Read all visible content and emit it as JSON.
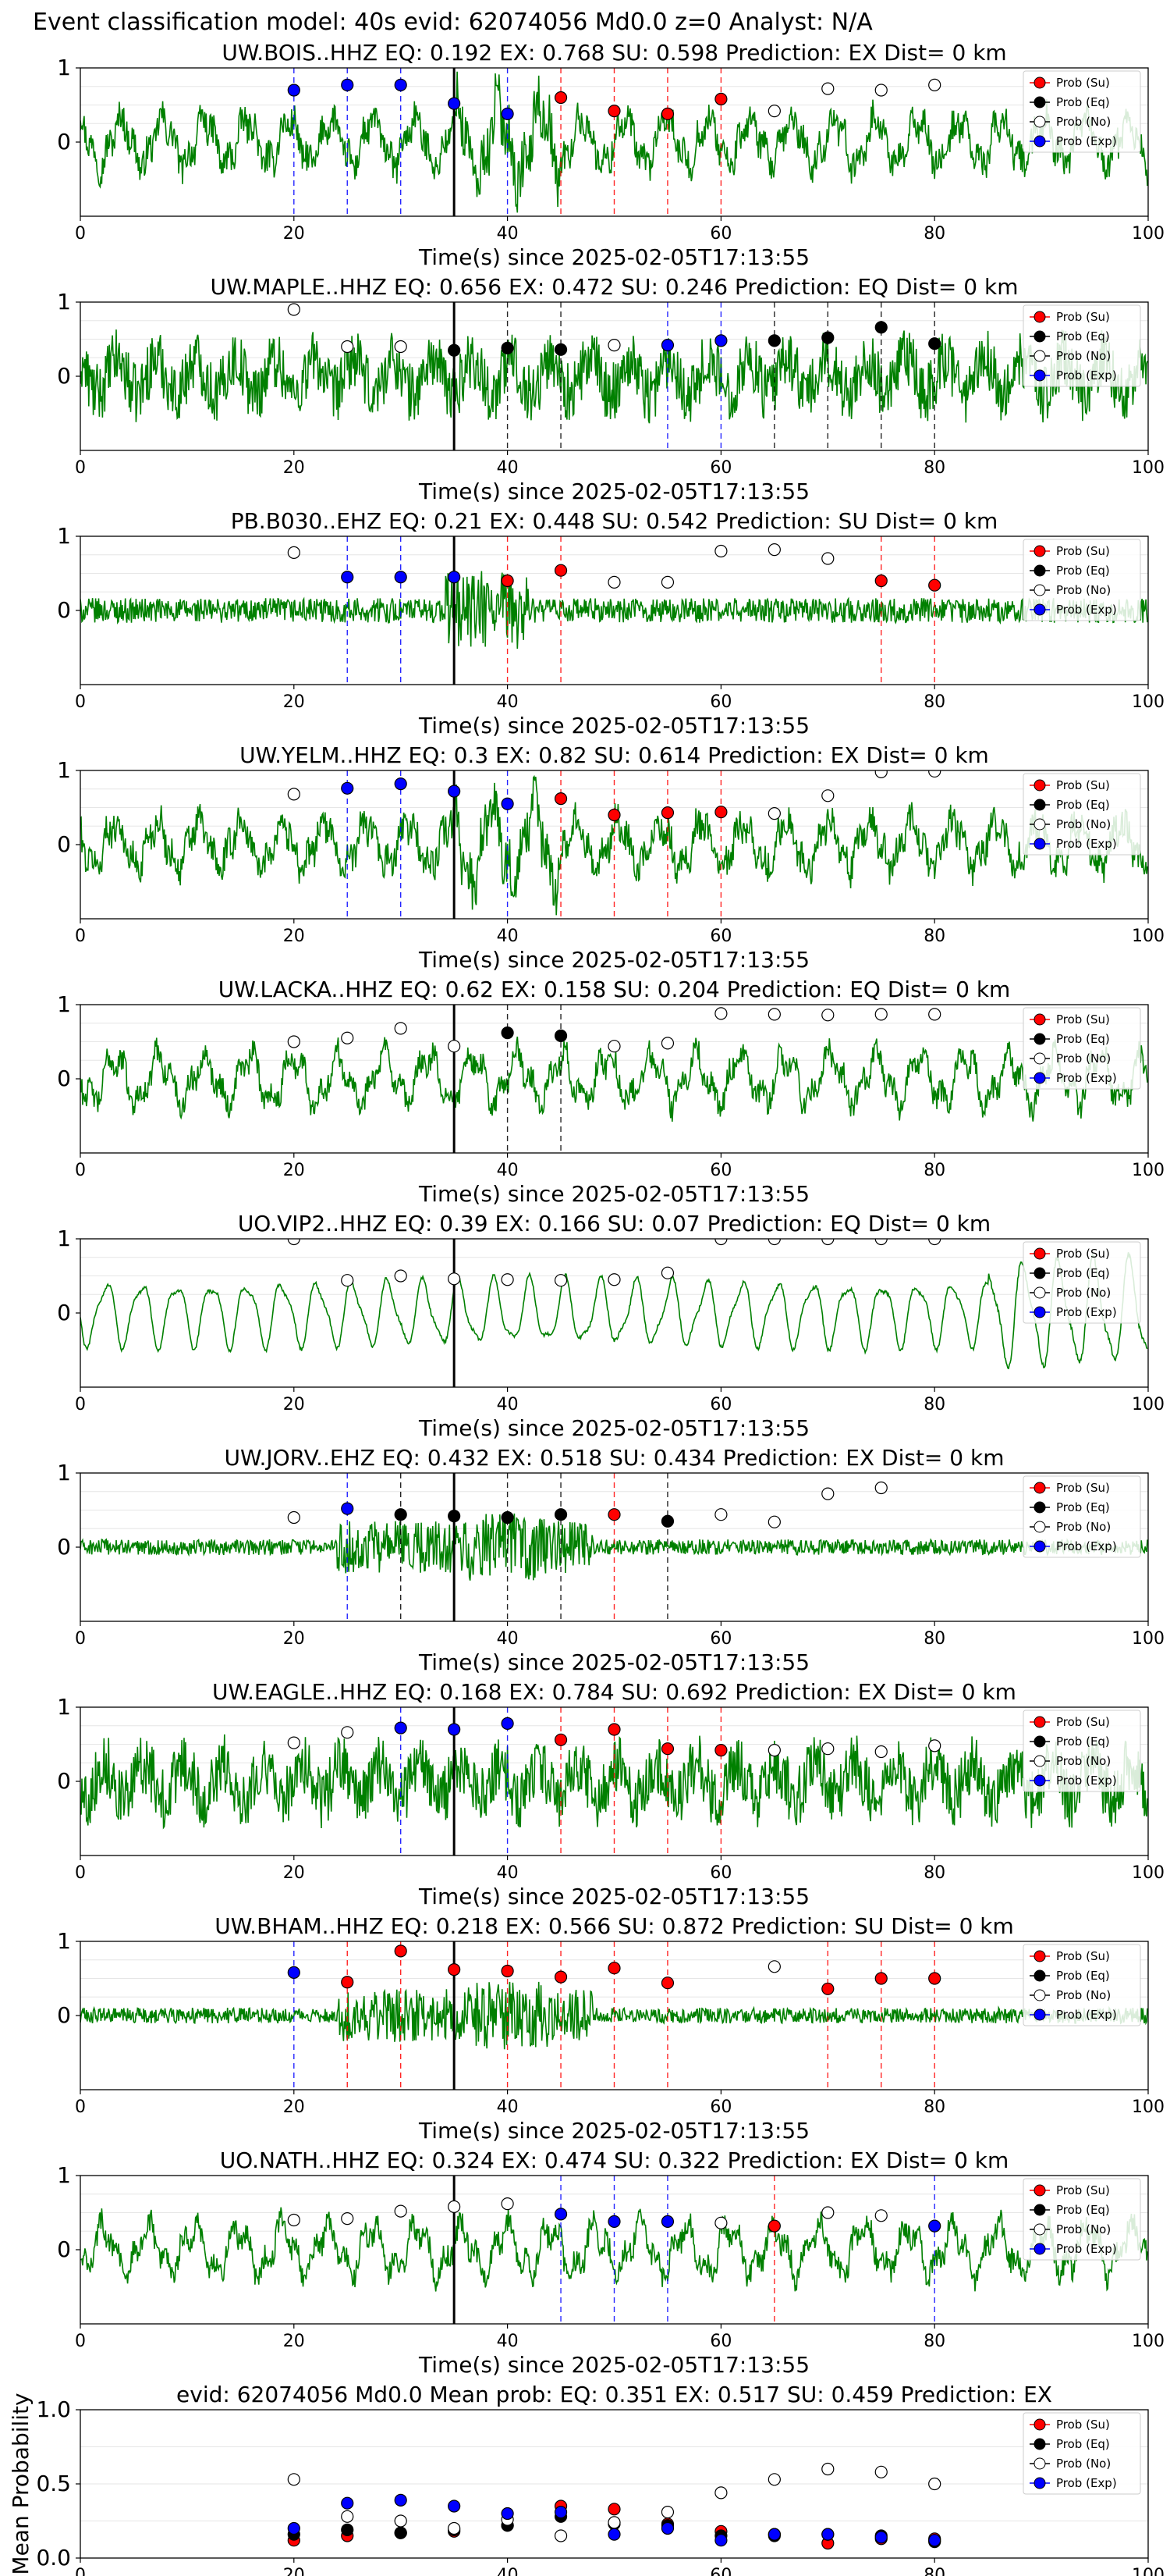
{
  "suptitle": "Event classification model: 40s evid: 62074056 Md0.0 z=0 Analyst: N/A",
  "colors": {
    "su": "#ff0000",
    "eq": "#000000",
    "ex": "#0000ff",
    "trace": "#008000"
  },
  "legend": [
    "Prob (Su)",
    "Prob (Eq)",
    "Prob (No)",
    "Prob (Exp)"
  ],
  "xlabel": "Time(s) since 2025-02-05T17:13:55",
  "xticks": [
    0,
    20,
    40,
    60,
    80,
    100
  ],
  "chart_data": [
    {
      "type": "scatter",
      "station": "UW.BOIS..HHZ",
      "title": "UW.BOIS..HHZ   EQ: 0.192  EX: 0.768  SU: 0.598   Prediction: EX    Dist= 0 km",
      "xlim": [
        0,
        100
      ],
      "ylim": [
        -1,
        1
      ],
      "yticks": [
        "1",
        "0"
      ],
      "waveform_style": "mid",
      "points": [
        {
          "t": 20,
          "c": "ex",
          "p": 0.7
        },
        {
          "t": 25,
          "c": "ex",
          "p": 0.77
        },
        {
          "t": 30,
          "c": "ex",
          "p": 0.77
        },
        {
          "t": 35,
          "c": "ex",
          "p": 0.52
        },
        {
          "t": 40,
          "c": "ex",
          "p": 0.38
        },
        {
          "t": 45,
          "c": "su",
          "p": 0.6
        },
        {
          "t": 50,
          "c": "su",
          "p": 0.42
        },
        {
          "t": 55,
          "c": "su",
          "p": 0.38
        },
        {
          "t": 60,
          "c": "su",
          "p": 0.58
        },
        {
          "t": 65,
          "c": "no",
          "p": 0.42
        },
        {
          "t": 70,
          "c": "no",
          "p": 0.72
        },
        {
          "t": 75,
          "c": "no",
          "p": 0.7
        },
        {
          "t": 80,
          "c": "no",
          "p": 0.77
        }
      ]
    },
    {
      "type": "scatter",
      "station": "UW.MAPLE..HHZ",
      "title": "UW.MAPLE..HHZ   EQ: 0.656  EX: 0.472  SU: 0.246   Prediction: EQ    Dist= 0 km",
      "xlim": [
        0,
        100
      ],
      "ylim": [
        -1,
        1
      ],
      "yticks": [
        "1",
        "0"
      ],
      "waveform_style": "noisy",
      "points": [
        {
          "t": 20,
          "c": "no",
          "p": 0.9
        },
        {
          "t": 25,
          "c": "no",
          "p": 0.4
        },
        {
          "t": 30,
          "c": "no",
          "p": 0.4
        },
        {
          "t": 35,
          "c": "eq",
          "p": 0.35
        },
        {
          "t": 40,
          "c": "eq",
          "p": 0.38
        },
        {
          "t": 45,
          "c": "eq",
          "p": 0.36
        },
        {
          "t": 50,
          "c": "no",
          "p": 0.42
        },
        {
          "t": 55,
          "c": "ex",
          "p": 0.42
        },
        {
          "t": 60,
          "c": "ex",
          "p": 0.48
        },
        {
          "t": 65,
          "c": "eq",
          "p": 0.48
        },
        {
          "t": 70,
          "c": "eq",
          "p": 0.52
        },
        {
          "t": 75,
          "c": "eq",
          "p": 0.66
        },
        {
          "t": 80,
          "c": "eq",
          "p": 0.44
        }
      ]
    },
    {
      "type": "scatter",
      "station": "PB.B030..EHZ",
      "title": "PB.B030..EHZ   EQ: 0.21  EX: 0.448  SU: 0.542   Prediction: SU    Dist= 0 km",
      "xlim": [
        0,
        100
      ],
      "ylim": [
        -1,
        1
      ],
      "yticks": [
        "1",
        "0"
      ],
      "waveform_style": "quiet",
      "points": [
        {
          "t": 20,
          "c": "no",
          "p": 0.78
        },
        {
          "t": 25,
          "c": "ex",
          "p": 0.45
        },
        {
          "t": 30,
          "c": "ex",
          "p": 0.45
        },
        {
          "t": 35,
          "c": "ex",
          "p": 0.45
        },
        {
          "t": 40,
          "c": "su",
          "p": 0.4
        },
        {
          "t": 45,
          "c": "su",
          "p": 0.54
        },
        {
          "t": 50,
          "c": "no",
          "p": 0.38
        },
        {
          "t": 55,
          "c": "no",
          "p": 0.38
        },
        {
          "t": 60,
          "c": "no",
          "p": 0.8
        },
        {
          "t": 65,
          "c": "no",
          "p": 0.82
        },
        {
          "t": 70,
          "c": "no",
          "p": 0.7
        },
        {
          "t": 75,
          "c": "su",
          "p": 0.4
        },
        {
          "t": 80,
          "c": "su",
          "p": 0.34
        }
      ]
    },
    {
      "type": "scatter",
      "station": "UW.YELM..HHZ",
      "title": "UW.YELM..HHZ   EQ: 0.3  EX: 0.82  SU: 0.614   Prediction: EX    Dist= 0 km",
      "xlim": [
        0,
        100
      ],
      "ylim": [
        -1,
        1
      ],
      "yticks": [
        "1",
        "0"
      ],
      "waveform_style": "mid",
      "points": [
        {
          "t": 20,
          "c": "no",
          "p": 0.68
        },
        {
          "t": 25,
          "c": "ex",
          "p": 0.76
        },
        {
          "t": 30,
          "c": "ex",
          "p": 0.82
        },
        {
          "t": 35,
          "c": "ex",
          "p": 0.72
        },
        {
          "t": 40,
          "c": "ex",
          "p": 0.55
        },
        {
          "t": 45,
          "c": "su",
          "p": 0.62
        },
        {
          "t": 50,
          "c": "su",
          "p": 0.4
        },
        {
          "t": 55,
          "c": "su",
          "p": 0.43
        },
        {
          "t": 60,
          "c": "su",
          "p": 0.44
        },
        {
          "t": 65,
          "c": "no",
          "p": 0.42
        },
        {
          "t": 70,
          "c": "no",
          "p": 0.66
        },
        {
          "t": 75,
          "c": "no",
          "p": 0.98
        },
        {
          "t": 80,
          "c": "no",
          "p": 0.99
        }
      ]
    },
    {
      "type": "scatter",
      "station": "UW.LACKA..HHZ",
      "title": "UW.LACKA..HHZ   EQ: 0.62  EX: 0.158  SU: 0.204   Prediction: EQ    Dist= 0 km",
      "xlim": [
        0,
        100
      ],
      "ylim": [
        -1,
        1
      ],
      "yticks": [
        "1",
        "0"
      ],
      "waveform_style": "slow",
      "points": [
        {
          "t": 20,
          "c": "no",
          "p": 0.5
        },
        {
          "t": 25,
          "c": "no",
          "p": 0.55
        },
        {
          "t": 30,
          "c": "no",
          "p": 0.68
        },
        {
          "t": 35,
          "c": "no",
          "p": 0.44
        },
        {
          "t": 40,
          "c": "eq",
          "p": 0.62
        },
        {
          "t": 45,
          "c": "eq",
          "p": 0.58
        },
        {
          "t": 50,
          "c": "no",
          "p": 0.44
        },
        {
          "t": 55,
          "c": "no",
          "p": 0.48
        },
        {
          "t": 60,
          "c": "no",
          "p": 0.88
        },
        {
          "t": 65,
          "c": "no",
          "p": 0.87
        },
        {
          "t": 70,
          "c": "no",
          "p": 0.86
        },
        {
          "t": 75,
          "c": "no",
          "p": 0.87
        },
        {
          "t": 80,
          "c": "no",
          "p": 0.87
        }
      ]
    },
    {
      "type": "scatter",
      "station": "UO.VIP2..HHZ",
      "title": "UO.VIP2..HHZ   EQ: 0.39  EX: 0.166  SU: 0.07   Prediction: EQ    Dist= 0 km",
      "xlim": [
        0,
        100
      ],
      "ylim": [
        -1,
        1
      ],
      "yticks": [
        "1",
        "0"
      ],
      "waveform_style": "smooth",
      "points": [
        {
          "t": 20,
          "c": "no",
          "p": 1.0
        },
        {
          "t": 25,
          "c": "no",
          "p": 0.44
        },
        {
          "t": 30,
          "c": "no",
          "p": 0.5
        },
        {
          "t": 35,
          "c": "no",
          "p": 0.46
        },
        {
          "t": 40,
          "c": "no",
          "p": 0.45
        },
        {
          "t": 45,
          "c": "no",
          "p": 0.44
        },
        {
          "t": 50,
          "c": "no",
          "p": 0.45
        },
        {
          "t": 55,
          "c": "no",
          "p": 0.54
        },
        {
          "t": 60,
          "c": "no",
          "p": 1.0
        },
        {
          "t": 65,
          "c": "no",
          "p": 1.0
        },
        {
          "t": 70,
          "c": "no",
          "p": 1.0
        },
        {
          "t": 75,
          "c": "no",
          "p": 1.0
        },
        {
          "t": 80,
          "c": "no",
          "p": 1.0
        }
      ]
    },
    {
      "type": "scatter",
      "station": "UW.JORV..EHZ",
      "title": "UW.JORV..EHZ   EQ: 0.432  EX: 0.518  SU: 0.434   Prediction: EX    Dist= 0 km",
      "xlim": [
        0,
        100
      ],
      "ylim": [
        -1,
        1
      ],
      "yticks": [
        "1",
        "0"
      ],
      "waveform_style": "burst",
      "points": [
        {
          "t": 20,
          "c": "no",
          "p": 0.4
        },
        {
          "t": 25,
          "c": "ex",
          "p": 0.52
        },
        {
          "t": 30,
          "c": "eq",
          "p": 0.44
        },
        {
          "t": 35,
          "c": "eq",
          "p": 0.42
        },
        {
          "t": 40,
          "c": "eq",
          "p": 0.4
        },
        {
          "t": 45,
          "c": "eq",
          "p": 0.44
        },
        {
          "t": 50,
          "c": "su",
          "p": 0.44
        },
        {
          "t": 55,
          "c": "eq",
          "p": 0.35
        },
        {
          "t": 60,
          "c": "no",
          "p": 0.44
        },
        {
          "t": 65,
          "c": "no",
          "p": 0.34
        },
        {
          "t": 70,
          "c": "no",
          "p": 0.72
        },
        {
          "t": 75,
          "c": "no",
          "p": 0.8
        }
      ]
    },
    {
      "type": "scatter",
      "station": "UW.EAGLE..HHZ",
      "title": "UW.EAGLE..HHZ   EQ: 0.168  EX: 0.784  SU: 0.692   Prediction: EX    Dist= 0 km",
      "xlim": [
        0,
        100
      ],
      "ylim": [
        -1,
        1
      ],
      "yticks": [
        "1",
        "0"
      ],
      "waveform_style": "noisy",
      "points": [
        {
          "t": 20,
          "c": "no",
          "p": 0.52
        },
        {
          "t": 25,
          "c": "no",
          "p": 0.66
        },
        {
          "t": 30,
          "c": "ex",
          "p": 0.72
        },
        {
          "t": 35,
          "c": "ex",
          "p": 0.7
        },
        {
          "t": 40,
          "c": "ex",
          "p": 0.78
        },
        {
          "t": 45,
          "c": "su",
          "p": 0.56
        },
        {
          "t": 50,
          "c": "su",
          "p": 0.7
        },
        {
          "t": 55,
          "c": "su",
          "p": 0.44
        },
        {
          "t": 60,
          "c": "su",
          "p": 0.42
        },
        {
          "t": 65,
          "c": "no",
          "p": 0.42
        },
        {
          "t": 70,
          "c": "no",
          "p": 0.44
        },
        {
          "t": 75,
          "c": "no",
          "p": 0.4
        },
        {
          "t": 80,
          "c": "no",
          "p": 0.48
        }
      ]
    },
    {
      "type": "scatter",
      "station": "UW.BHAM..HHZ",
      "title": "UW.BHAM..HHZ   EQ: 0.218  EX: 0.566  SU: 0.872   Prediction: SU    Dist= 0 km",
      "xlim": [
        0,
        100
      ],
      "ylim": [
        -1,
        1
      ],
      "yticks": [
        "1",
        "0"
      ],
      "waveform_style": "burst",
      "points": [
        {
          "t": 20,
          "c": "ex",
          "p": 0.58
        },
        {
          "t": 25,
          "c": "su",
          "p": 0.45
        },
        {
          "t": 30,
          "c": "su",
          "p": 0.87
        },
        {
          "t": 35,
          "c": "su",
          "p": 0.62
        },
        {
          "t": 40,
          "c": "su",
          "p": 0.6
        },
        {
          "t": 45,
          "c": "su",
          "p": 0.52
        },
        {
          "t": 50,
          "c": "su",
          "p": 0.64
        },
        {
          "t": 55,
          "c": "su",
          "p": 0.44
        },
        {
          "t": 65,
          "c": "no",
          "p": 0.66
        },
        {
          "t": 70,
          "c": "su",
          "p": 0.36
        },
        {
          "t": 75,
          "c": "su",
          "p": 0.5
        },
        {
          "t": 80,
          "c": "su",
          "p": 0.5
        }
      ]
    },
    {
      "type": "scatter",
      "station": "UO.NATH..HHZ",
      "title": "UO.NATH..HHZ   EQ: 0.324  EX: 0.474  SU: 0.322   Prediction: EX    Dist= 0 km",
      "xlim": [
        0,
        100
      ],
      "ylim": [
        -1,
        1
      ],
      "yticks": [
        "1",
        "0"
      ],
      "waveform_style": "slow",
      "points": [
        {
          "t": 20,
          "c": "no",
          "p": 0.4
        },
        {
          "t": 25,
          "c": "no",
          "p": 0.42
        },
        {
          "t": 30,
          "c": "no",
          "p": 0.52
        },
        {
          "t": 35,
          "c": "no",
          "p": 0.58
        },
        {
          "t": 40,
          "c": "no",
          "p": 0.62
        },
        {
          "t": 45,
          "c": "ex",
          "p": 0.48
        },
        {
          "t": 50,
          "c": "ex",
          "p": 0.38
        },
        {
          "t": 55,
          "c": "ex",
          "p": 0.38
        },
        {
          "t": 60,
          "c": "no",
          "p": 0.36
        },
        {
          "t": 65,
          "c": "su",
          "p": 0.32
        },
        {
          "t": 70,
          "c": "no",
          "p": 0.5
        },
        {
          "t": 75,
          "c": "no",
          "p": 0.46
        },
        {
          "t": 80,
          "c": "ex",
          "p": 0.32
        }
      ]
    },
    {
      "type": "scatter",
      "station": "mean",
      "title": "evid: 62074056  Md0.0   Mean prob:   EQ: 0.351  EX: 0.517  SU: 0.459   Prediction: EX",
      "ylabel": "Mean Probability",
      "xlim": [
        0,
        100
      ],
      "ylim": [
        0,
        1
      ],
      "yticks": [
        "0.0",
        "0.5",
        "1.0"
      ],
      "x": [
        20,
        25,
        30,
        35,
        40,
        45,
        50,
        55,
        60,
        65,
        70,
        75,
        80
      ],
      "series": [
        {
          "name": "Prob (Su)",
          "c": "su",
          "values": [
            0.12,
            0.15,
            0.17,
            0.18,
            0.22,
            0.35,
            0.33,
            0.23,
            0.18,
            0.16,
            0.1,
            0.13,
            0.13
          ]
        },
        {
          "name": "Prob (Eq)",
          "c": "eq",
          "values": [
            0.16,
            0.19,
            0.17,
            0.19,
            0.22,
            0.28,
            0.23,
            0.22,
            0.15,
            0.15,
            0.16,
            0.15,
            0.11
          ]
        },
        {
          "name": "Prob (No)",
          "c": "no",
          "values": [
            0.53,
            0.28,
            0.25,
            0.2,
            0.26,
            0.15,
            0.24,
            0.31,
            0.44,
            0.53,
            0.6,
            0.58,
            0.5
          ]
        },
        {
          "name": "Prob (Exp)",
          "c": "ex",
          "values": [
            0.2,
            0.37,
            0.39,
            0.35,
            0.3,
            0.31,
            0.16,
            0.2,
            0.12,
            0.16,
            0.16,
            0.14,
            0.12
          ]
        }
      ]
    }
  ]
}
